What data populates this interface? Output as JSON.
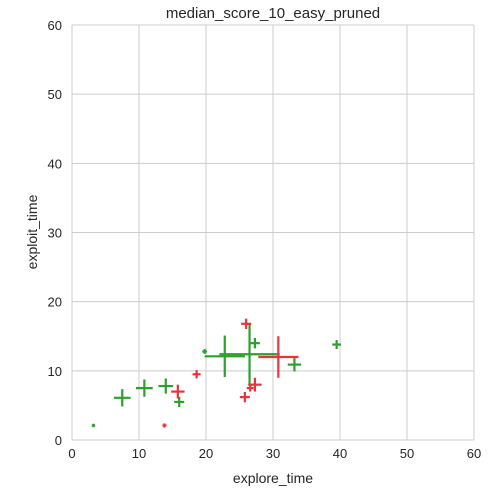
{
  "chart_data": {
    "type": "scatter",
    "title": "median_score_10_easy_pruned",
    "xlabel": "explore_time",
    "ylabel": "exploit_time",
    "xlim": [
      0,
      60
    ],
    "ylim": [
      0,
      60
    ],
    "xticks": [
      0,
      10,
      20,
      30,
      40,
      50,
      60
    ],
    "yticks": [
      0,
      10,
      20,
      30,
      40,
      50,
      60
    ],
    "grid": true,
    "marker": "plus",
    "series": [
      {
        "color": "#2ca02c",
        "points": [
          {
            "x": 3.2,
            "y": 2.1,
            "size": 0.5
          },
          {
            "x": 7.5,
            "y": 6.1,
            "size": 2.5
          },
          {
            "x": 10.8,
            "y": 7.5,
            "size": 2.5
          },
          {
            "x": 14.0,
            "y": 7.8,
            "size": 2.2
          },
          {
            "x": 16.0,
            "y": 5.5,
            "size": 1.5
          },
          {
            "x": 19.8,
            "y": 12.8,
            "size": 0.7
          },
          {
            "x": 22.8,
            "y": 12.1,
            "size": 6.0
          },
          {
            "x": 26.5,
            "y": 12.4,
            "size": 9.0
          },
          {
            "x": 27.3,
            "y": 14.0,
            "size": 1.5
          },
          {
            "x": 33.2,
            "y": 10.9,
            "size": 2.0
          },
          {
            "x": 39.5,
            "y": 13.8,
            "size": 1.3
          }
        ]
      },
      {
        "color": "#e8333a",
        "points": [
          {
            "x": 13.8,
            "y": 2.1,
            "size": 0.6
          },
          {
            "x": 15.8,
            "y": 7.0,
            "size": 2.0
          },
          {
            "x": 18.6,
            "y": 9.5,
            "size": 1.2
          },
          {
            "x": 25.8,
            "y": 6.2,
            "size": 1.5
          },
          {
            "x": 26.0,
            "y": 16.8,
            "size": 1.5
          },
          {
            "x": 26.6,
            "y": 7.5,
            "size": 1.0
          },
          {
            "x": 27.3,
            "y": 8.0,
            "size": 2.0
          },
          {
            "x": 30.8,
            "y": 12.0,
            "size": 6.0
          }
        ]
      }
    ]
  }
}
